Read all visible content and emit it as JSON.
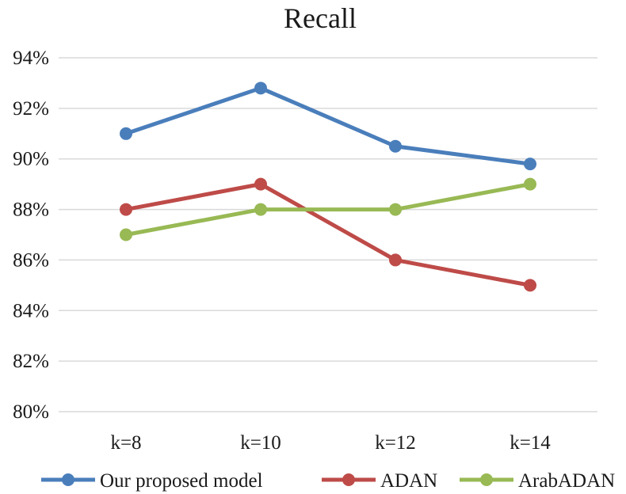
{
  "chart_data": {
    "type": "line",
    "title": "Recall",
    "xlabel": "",
    "ylabel": "",
    "categories": [
      "k=8",
      "k=10",
      "k=12",
      "k=14"
    ],
    "ylim": [
      80,
      94
    ],
    "yticks": [
      80,
      82,
      84,
      86,
      88,
      90,
      92,
      94
    ],
    "ytick_labels": [
      "80%",
      "82%",
      "84%",
      "86%",
      "88%",
      "90%",
      "92%",
      "94%"
    ],
    "grid": true,
    "legend_position": "bottom",
    "series": [
      {
        "name": "Our proposed model",
        "color": "#4a7ebb",
        "values": [
          91.0,
          92.8,
          90.5,
          89.8
        ]
      },
      {
        "name": "ADAN",
        "color": "#be4b48",
        "values": [
          88.0,
          89.0,
          86.0,
          85.0
        ]
      },
      {
        "name": "ArabADAN",
        "color": "#98b954",
        "values": [
          87.0,
          88.0,
          88.0,
          89.0
        ]
      }
    ]
  }
}
